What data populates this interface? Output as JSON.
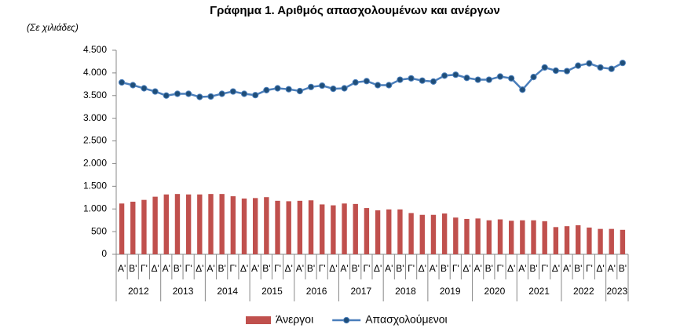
{
  "chart_data": {
    "type": "combo",
    "title": "Γράφημα 1. Αριθμός απασχολουμένων και ανέργων",
    "subtitle": "(Σε χιλιάδες)",
    "categories": [
      "Α'",
      "Β'",
      "Γ'",
      "Δ'",
      "Α'",
      "Β'",
      "Γ'",
      "Δ'",
      "Α'",
      "Β'",
      "Γ'",
      "Δ'",
      "Α'",
      "Β'",
      "Γ'",
      "Δ'",
      "Α'",
      "Β'",
      "Γ'",
      "Δ'",
      "Α'",
      "Β'",
      "Γ'",
      "Δ'",
      "Α'",
      "Β'",
      "Γ'",
      "Δ'",
      "Α'",
      "Β'",
      "Γ'",
      "Δ'",
      "Α'",
      "Β'",
      "Γ'",
      "Δ'",
      "Α'",
      "Β'",
      "Γ'",
      "Δ'",
      "Α'",
      "Β'",
      "Γ'",
      "Δ'",
      "Α'",
      "Β'"
    ],
    "year_categories": [
      "2012",
      null,
      null,
      null,
      "2013",
      null,
      null,
      null,
      "2014",
      null,
      null,
      null,
      "2015",
      null,
      null,
      null,
      "2016",
      null,
      null,
      null,
      "2017",
      null,
      null,
      null,
      "2018",
      null,
      null,
      null,
      "2019",
      null,
      null,
      null,
      "2020",
      null,
      null,
      null,
      "2021",
      null,
      null,
      null,
      "2022",
      null,
      null,
      null,
      "2023",
      null
    ],
    "series": [
      {
        "name": "Άνεργοι",
        "type": "bar",
        "color": "#c0504d",
        "values": [
          1120,
          1160,
          1200,
          1270,
          1320,
          1330,
          1320,
          1320,
          1330,
          1330,
          1280,
          1230,
          1240,
          1260,
          1180,
          1170,
          1180,
          1190,
          1100,
          1080,
          1120,
          1110,
          1020,
          970,
          990,
          990,
          910,
          870,
          870,
          900,
          810,
          780,
          790,
          750,
          770,
          740,
          750,
          750,
          730,
          600,
          620,
          640,
          590,
          560,
          560,
          540
        ]
      },
      {
        "name": "Απασχολούμενοι",
        "type": "line",
        "color": "#4a7ebb",
        "marker_color": "#1f4e79",
        "values": [
          3790,
          3730,
          3660,
          3590,
          3500,
          3540,
          3540,
          3470,
          3480,
          3540,
          3590,
          3540,
          3510,
          3620,
          3660,
          3640,
          3600,
          3690,
          3720,
          3650,
          3660,
          3790,
          3820,
          3730,
          3730,
          3850,
          3880,
          3830,
          3810,
          3940,
          3960,
          3890,
          3850,
          3850,
          3920,
          3880,
          3630,
          3910,
          4120,
          4050,
          4040,
          4160,
          4210,
          4120,
          4090,
          4220
        ]
      }
    ],
    "ylim": [
      0,
      4500
    ],
    "yticks": [
      0,
      500,
      {
        "value": 1000,
        "label": "1.000"
      },
      {
        "value": 1500,
        "label": "1.500"
      },
      {
        "value": 2000,
        "label": "2.000"
      },
      {
        "value": 2500,
        "label": "2.500"
      },
      {
        "value": 3000,
        "label": "3.000"
      },
      {
        "value": 3500,
        "label": "3.500"
      },
      {
        "value": 4000,
        "label": "4.000"
      },
      {
        "value": 4500,
        "label": "4.500"
      }
    ],
    "grid": false,
    "legend": "bottom"
  }
}
